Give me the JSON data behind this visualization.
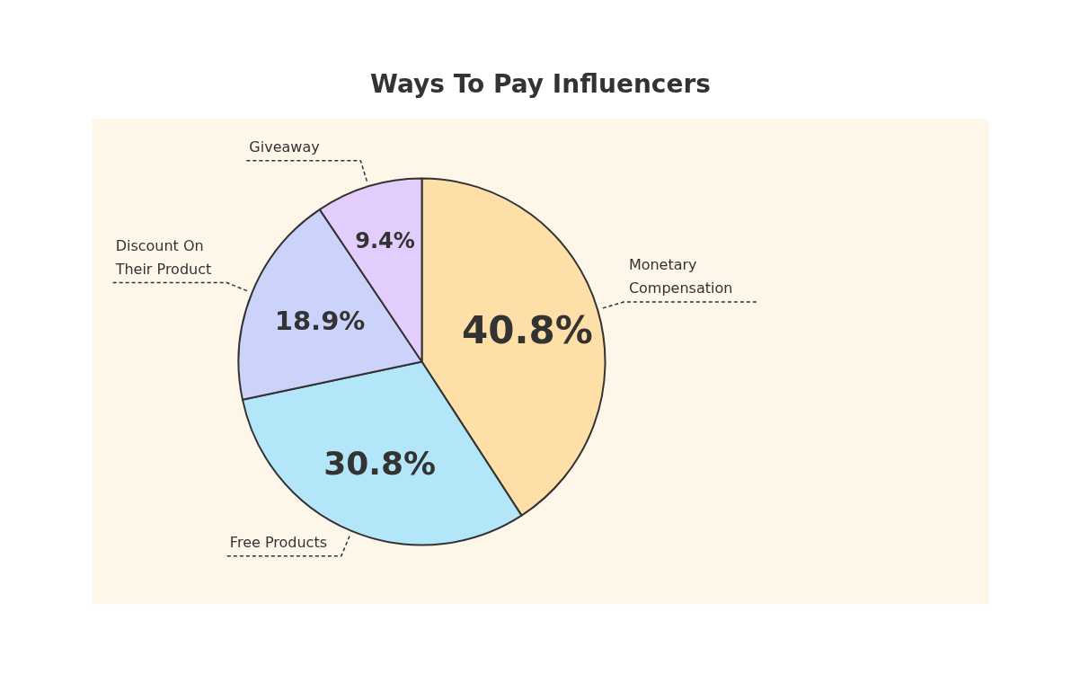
{
  "chart_data": {
    "type": "pie",
    "title": "Ways To Pay Influencers",
    "categories": [
      "Monetary Compensation",
      "Free Products",
      "Discount On Their Product",
      "Giveaway"
    ],
    "values": [
      40.8,
      30.8,
      18.9,
      9.4
    ],
    "value_labels": [
      "40.8%",
      "30.8%",
      "18.9%",
      "9.4%"
    ],
    "colors": [
      "#fedfa7",
      "#b3e6f8",
      "#cbd3fa",
      "#e3cdfd"
    ]
  }
}
